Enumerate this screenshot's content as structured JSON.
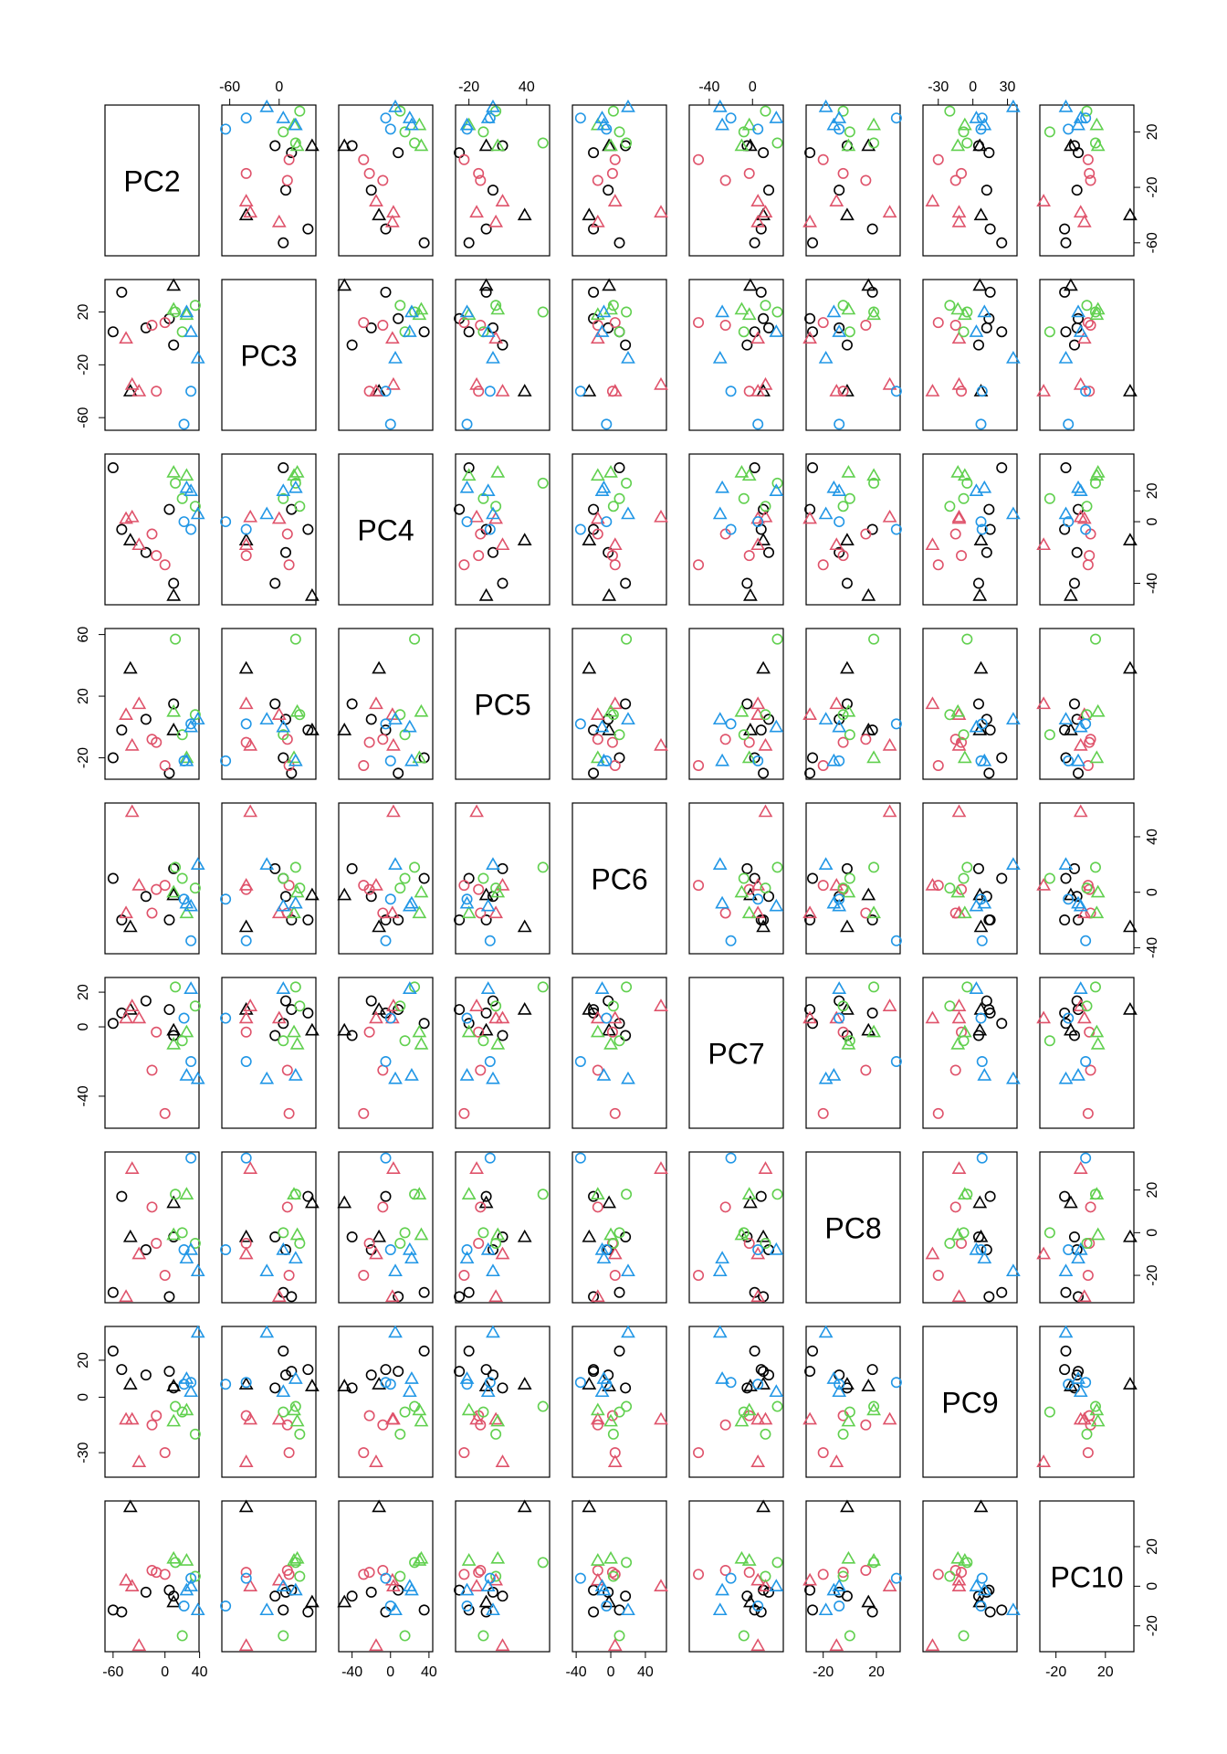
{
  "chart_data": {
    "type": "scatter",
    "title": "",
    "variables": [
      "PC2",
      "PC3",
      "PC4",
      "PC5",
      "PC6",
      "PC7",
      "PC8",
      "PC9",
      "PC10"
    ],
    "ranges": {
      "PC2": [
        -65,
        35
      ],
      "PC3": [
        -65,
        40
      ],
      "PC4": [
        -50,
        40
      ],
      "PC5": [
        -30,
        60
      ],
      "PC6": [
        -40,
        60
      ],
      "PC7": [
        -55,
        25
      ],
      "PC8": [
        -30,
        35
      ],
      "PC9": [
        -40,
        35
      ],
      "PC10": [
        -30,
        40
      ]
    },
    "ticks": {
      "PC2": [
        -60,
        -20,
        20
      ],
      "PC3": [
        -60,
        -20,
        20
      ],
      "PC4": [
        -40,
        0,
        20
      ],
      "PC5": [
        -20,
        20,
        60
      ],
      "PC6": [
        -40,
        0,
        40
      ],
      "PC7": [
        -40,
        0,
        20
      ],
      "PC8": [
        -20,
        0,
        20
      ],
      "PC9": [
        -30,
        0,
        20
      ],
      "PC10": [
        -20,
        0,
        20
      ]
    },
    "axes": {
      "top": [
        {
          "col": 1,
          "ticks": [
            -60,
            0
          ]
        },
        {
          "col": 3,
          "ticks": [
            -20,
            40
          ]
        },
        {
          "col": 5,
          "ticks": [
            -40,
            0
          ]
        },
        {
          "col": 7,
          "ticks": [
            -30,
            0,
            30
          ]
        }
      ],
      "bottom": [
        {
          "col": 0,
          "ticks": [
            -60,
            0,
            40
          ]
        },
        {
          "col": 2,
          "ticks": [
            -40,
            0,
            40
          ]
        },
        {
          "col": 4,
          "ticks": [
            -40,
            0,
            40
          ]
        },
        {
          "col": 6,
          "ticks": [
            -20,
            20
          ]
        },
        {
          "col": 8,
          "ticks": [
            -20,
            20
          ]
        }
      ],
      "left": [
        {
          "row": 1,
          "ticks": [
            -60,
            -20,
            20
          ]
        },
        {
          "row": 3,
          "ticks": [
            -20,
            20,
            60
          ]
        },
        {
          "row": 5,
          "ticks": [
            -40,
            0,
            20
          ]
        },
        {
          "row": 7,
          "ticks": [
            -30,
            0,
            20
          ]
        }
      ],
      "right": [
        {
          "row": 0,
          "ticks": [
            -60,
            -20,
            20
          ]
        },
        {
          "row": 2,
          "ticks": [
            -40,
            0,
            20
          ]
        },
        {
          "row": 4,
          "ticks": [
            -40,
            0,
            40
          ]
        },
        {
          "row": 6,
          "ticks": [
            -20,
            0,
            20
          ]
        },
        {
          "row": 8,
          "ticks": [
            -20,
            0,
            20
          ]
        }
      ]
    },
    "groups": {
      "red": "#DF536B",
      "green": "#61D04F",
      "blue": "#2297E6",
      "black": "#000000"
    },
    "observations": [
      {
        "group": "black",
        "shape": "circle",
        "values": {
          "PC2": -60,
          "PC3": 5,
          "PC4": 35,
          "PC5": -20,
          "PC6": 10,
          "PC7": 2,
          "PC8": -28,
          "PC9": 25,
          "PC10": -12
        }
      },
      {
        "group": "black",
        "shape": "circle",
        "values": {
          "PC2": -50,
          "PC3": 35,
          "PC4": -5,
          "PC5": -2,
          "PC6": -20,
          "PC7": 8,
          "PC8": 17,
          "PC9": 15,
          "PC10": -13
        }
      },
      {
        "group": "black",
        "shape": "circle",
        "values": {
          "PC2": -22,
          "PC3": 8,
          "PC4": -20,
          "PC5": 5,
          "PC6": -3,
          "PC7": 15,
          "PC8": -8,
          "PC9": 12,
          "PC10": -3
        }
      },
      {
        "group": "black",
        "shape": "circle",
        "values": {
          "PC2": 10,
          "PC3": -5,
          "PC4": -40,
          "PC5": 15,
          "PC6": 17,
          "PC7": -5,
          "PC8": -2,
          "PC9": 5,
          "PC10": -5
        }
      },
      {
        "group": "black",
        "shape": "circle",
        "values": {
          "PC2": 5,
          "PC3": 15,
          "PC4": 8,
          "PC5": -30,
          "PC6": -20,
          "PC7": 10,
          "PC8": -30,
          "PC9": 14,
          "PC10": -2
        }
      },
      {
        "group": "black",
        "shape": "triangle",
        "values": {
          "PC2": -40,
          "PC3": -40,
          "PC4": -12,
          "PC5": 38,
          "PC6": -25,
          "PC7": 10,
          "PC8": -2,
          "PC9": 7,
          "PC10": 40
        }
      },
      {
        "group": "black",
        "shape": "triangle",
        "values": {
          "PC2": 10,
          "PC3": 40,
          "PC4": -48,
          "PC5": -2,
          "PC6": -2,
          "PC7": -2,
          "PC8": 14,
          "PC9": 6,
          "PC10": -8
        }
      },
      {
        "group": "red",
        "shape": "circle",
        "values": {
          "PC2": -15,
          "PC3": 10,
          "PC4": -8,
          "PC5": -8,
          "PC6": -15,
          "PC7": -25,
          "PC8": 12,
          "PC9": -15,
          "PC10": 8
        }
      },
      {
        "group": "red",
        "shape": "circle",
        "values": {
          "PC2": 0,
          "PC3": 12,
          "PC4": -28,
          "PC5": -25,
          "PC6": 5,
          "PC7": -50,
          "PC8": -20,
          "PC9": -30,
          "PC10": 6
        }
      },
      {
        "group": "red",
        "shape": "circle",
        "values": {
          "PC2": -10,
          "PC3": -40,
          "PC4": -22,
          "PC5": -10,
          "PC6": 2,
          "PC7": -3,
          "PC8": -5,
          "PC9": -10,
          "PC10": 7
        }
      },
      {
        "group": "red",
        "shape": "triangle",
        "values": {
          "PC2": -38,
          "PC3": -35,
          "PC4": 3,
          "PC5": -12,
          "PC6": 58,
          "PC7": 12,
          "PC8": 30,
          "PC9": -12,
          "PC10": 0
        }
      },
      {
        "group": "red",
        "shape": "triangle",
        "values": {
          "PC2": -30,
          "PC3": -40,
          "PC4": -15,
          "PC5": 15,
          "PC6": 5,
          "PC7": 5,
          "PC8": -10,
          "PC9": -35,
          "PC10": -30
        }
      },
      {
        "group": "red",
        "shape": "triangle",
        "values": {
          "PC2": -45,
          "PC3": 0,
          "PC4": 2,
          "PC5": 8,
          "PC6": -15,
          "PC7": 5,
          "PC8": -30,
          "PC9": -12,
          "PC10": 3
        }
      },
      {
        "group": "green",
        "shape": "circle",
        "values": {
          "PC2": 12,
          "PC3": 20,
          "PC4": 25,
          "PC5": 57,
          "PC6": 18,
          "PC7": 23,
          "PC8": 18,
          "PC9": -5,
          "PC10": 12
        }
      },
      {
        "group": "green",
        "shape": "circle",
        "values": {
          "PC2": 35,
          "PC3": 25,
          "PC4": 10,
          "PC5": 8,
          "PC6": 3,
          "PC7": 12,
          "PC8": -5,
          "PC9": -20,
          "PC10": 5
        }
      },
      {
        "group": "green",
        "shape": "circle",
        "values": {
          "PC2": 20,
          "PC3": 5,
          "PC4": 15,
          "PC5": -5,
          "PC6": 10,
          "PC7": -8,
          "PC8": 0,
          "PC9": -8,
          "PC10": -25
        }
      },
      {
        "group": "green",
        "shape": "triangle",
        "values": {
          "PC2": 25,
          "PC3": 18,
          "PC4": 30,
          "PC5": -20,
          "PC6": -15,
          "PC7": -3,
          "PC8": 18,
          "PC9": -7,
          "PC10": 13
        }
      },
      {
        "group": "green",
        "shape": "triangle",
        "values": {
          "PC2": 10,
          "PC3": 22,
          "PC4": 32,
          "PC5": 10,
          "PC6": 0,
          "PC7": -10,
          "PC8": -1,
          "PC9": -13,
          "PC10": 14
        }
      },
      {
        "group": "blue",
        "shape": "circle",
        "values": {
          "PC2": 30,
          "PC3": -40,
          "PC4": -5,
          "PC5": 2,
          "PC6": -35,
          "PC7": -20,
          "PC8": 35,
          "PC9": 8,
          "PC10": 4
        }
      },
      {
        "group": "blue",
        "shape": "circle",
        "values": {
          "PC2": 22,
          "PC3": -65,
          "PC4": 0,
          "PC5": -22,
          "PC6": -5,
          "PC7": 5,
          "PC8": -8,
          "PC9": 7,
          "PC10": -10
        }
      },
      {
        "group": "blue",
        "shape": "triangle",
        "values": {
          "PC2": 38,
          "PC3": -15,
          "PC4": 5,
          "PC5": 5,
          "PC6": 20,
          "PC7": -30,
          "PC8": -18,
          "PC9": 35,
          "PC10": -12
        }
      },
      {
        "group": "blue",
        "shape": "triangle",
        "values": {
          "PC2": 30,
          "PC3": 5,
          "PC4": 20,
          "PC5": 0,
          "PC6": -10,
          "PC7": 22,
          "PC8": -8,
          "PC9": 3,
          "PC10": 0
        }
      },
      {
        "group": "blue",
        "shape": "triangle",
        "values": {
          "PC2": 25,
          "PC3": 20,
          "PC4": 22,
          "PC5": -22,
          "PC6": -8,
          "PC7": -28,
          "PC8": -12,
          "PC9": 10,
          "PC10": -2
        }
      }
    ]
  }
}
